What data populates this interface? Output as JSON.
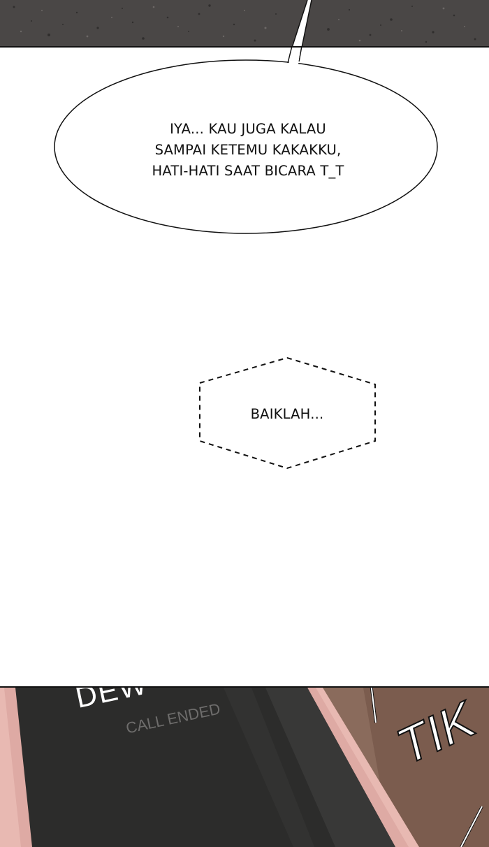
{
  "speech_bubble": {
    "lines": [
      "IYA... KAU JUGA KALAU",
      "SAMPAI KETEMU KAKAKKU,",
      "HATI-HATI SAAT BICARA T_T"
    ]
  },
  "thought_bubble": {
    "text": "BAIKLAH..."
  },
  "phone_screen": {
    "caller_name_partial": "DEW",
    "call_status": "CALL ENDED"
  },
  "sound_effect": {
    "text": "TIK"
  },
  "colors": {
    "top_panel_bg": "#4a4746",
    "phone_case": "#e8b9b2",
    "phone_screen": "#2c2c2b",
    "wall": "#8a6b5c"
  }
}
